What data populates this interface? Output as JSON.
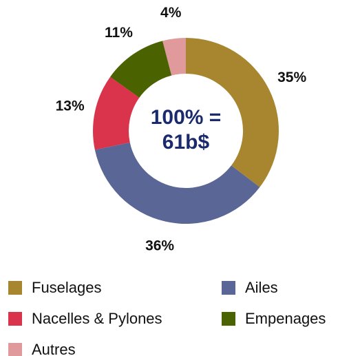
{
  "chart_data": {
    "type": "donut",
    "center_text": [
      "100% =",
      "61b$"
    ],
    "categories": [
      "Fuselages",
      "Ailes",
      "Nacelles & Pylones",
      "Empenages",
      "Autres"
    ],
    "values": [
      35,
      36,
      13,
      11,
      4
    ],
    "value_labels": [
      "35%",
      "36%",
      "13%",
      "11%",
      "4%"
    ],
    "colors": [
      "#a8862f",
      "#5a6796",
      "#d9344c",
      "#4a6200",
      "#e09a9c"
    ],
    "legend": "bottom"
  }
}
